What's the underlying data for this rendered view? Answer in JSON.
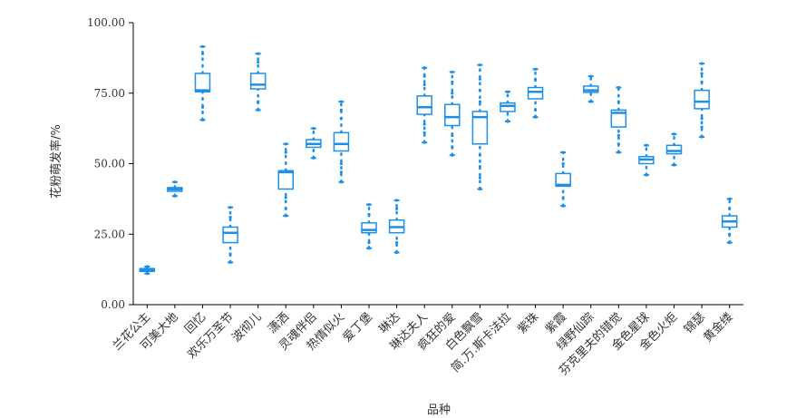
{
  "chart_data": {
    "type": "box",
    "xlabel": "品种",
    "ylabel": "花粉萌发率/%",
    "ylim": [
      0,
      100
    ],
    "yticks": [
      "0.00",
      "25.00",
      "50.00",
      "75.00",
      "100.00"
    ],
    "grid": false,
    "color": "#1e8fe6",
    "categories": [
      "兰花公主",
      "可美大地",
      "回忆",
      "欢乐万圣节",
      "波彻儿",
      "潇洒",
      "灵魂伴侣",
      "热情似火",
      "爱丁堡",
      "琳达",
      "琳达夫人",
      "疯狂的爱",
      "白色飘雪",
      "简.万.斯卡法拉",
      "紫珠",
      "紫霞",
      "绿野仙踪",
      "芬克里夫的错觉",
      "金色星球",
      "金色火炬",
      "锦瑟",
      "黄金缕"
    ],
    "boxes": [
      {
        "min": 11.0,
        "q1": 11.8,
        "median": 12.3,
        "q3": 12.8,
        "max": 13.5,
        "points": [
          11.0,
          13.5
        ]
      },
      {
        "min": 38.5,
        "q1": 40.2,
        "median": 40.9,
        "q3": 41.5,
        "max": 43.5,
        "points": [
          38.5,
          43.5
        ]
      },
      {
        "min": 65.5,
        "q1": 75.5,
        "median": 76.0,
        "q3": 82.0,
        "max": 91.5,
        "points": [
          65.5,
          70.0,
          89.0,
          91.5
        ]
      },
      {
        "min": 15.0,
        "q1": 22.0,
        "median": 25.5,
        "q3": 27.5,
        "max": 34.5,
        "points": [
          15.0,
          18.0,
          31.0,
          34.5
        ]
      },
      {
        "min": 69.0,
        "q1": 76.5,
        "median": 78.0,
        "q3": 82.0,
        "max": 89.0,
        "points": [
          69.0,
          72.0,
          86.0,
          89.0
        ]
      },
      {
        "min": 31.5,
        "q1": 41.0,
        "median": 47.0,
        "q3": 47.5,
        "max": 57.0,
        "points": [
          31.5,
          34.0,
          38.0,
          54.0,
          57.0
        ]
      },
      {
        "min": 52.0,
        "q1": 55.8,
        "median": 57.0,
        "q3": 58.5,
        "max": 62.5,
        "points": [
          52.0,
          62.5
        ]
      },
      {
        "min": 43.5,
        "q1": 54.5,
        "median": 57.0,
        "q3": 61.0,
        "max": 72.0,
        "points": [
          43.5,
          47.0,
          50.0,
          66.0,
          69.0,
          72.0
        ]
      },
      {
        "min": 20.0,
        "q1": 25.5,
        "median": 26.5,
        "q3": 29.0,
        "max": 35.5,
        "points": [
          20.0,
          22.0,
          32.0,
          35.5
        ]
      },
      {
        "min": 18.5,
        "q1": 25.5,
        "median": 27.5,
        "q3": 30.0,
        "max": 37.0,
        "points": [
          18.5,
          22.0,
          34.0,
          37.0
        ]
      },
      {
        "min": 57.5,
        "q1": 67.5,
        "median": 70.0,
        "q3": 74.0,
        "max": 84.0,
        "points": [
          57.5,
          61.0,
          64.0,
          78.0,
          81.0,
          84.0
        ]
      },
      {
        "min": 53.0,
        "q1": 63.5,
        "median": 66.5,
        "q3": 71.0,
        "max": 82.5,
        "points": [
          53.0,
          56.0,
          60.0,
          75.0,
          79.0,
          82.5
        ]
      },
      {
        "min": 41.0,
        "q1": 57.0,
        "median": 66.5,
        "q3": 68.5,
        "max": 85.0,
        "points": [
          41.0,
          45.0,
          49.0,
          53.0,
          72.0,
          76.0,
          80.0,
          85.0
        ]
      },
      {
        "min": 65.0,
        "q1": 68.5,
        "median": 70.5,
        "q3": 71.5,
        "max": 75.5,
        "points": [
          65.0,
          75.5
        ]
      },
      {
        "min": 66.5,
        "q1": 73.0,
        "median": 75.5,
        "q3": 77.0,
        "max": 83.5,
        "points": [
          66.5,
          69.0,
          80.0,
          83.5
        ]
      },
      {
        "min": 35.0,
        "q1": 42.0,
        "median": 42.5,
        "q3": 46.5,
        "max": 54.0,
        "points": [
          35.0,
          38.0,
          50.0,
          54.0
        ]
      },
      {
        "min": 72.0,
        "q1": 75.3,
        "median": 76.0,
        "q3": 77.5,
        "max": 81.0,
        "points": [
          72.0,
          81.0
        ]
      },
      {
        "min": 54.0,
        "q1": 63.0,
        "median": 68.0,
        "q3": 69.0,
        "max": 77.0,
        "points": [
          54.0,
          57.0,
          60.0,
          72.0,
          77.0
        ]
      },
      {
        "min": 46.0,
        "q1": 50.0,
        "median": 51.5,
        "q3": 52.5,
        "max": 56.5,
        "points": [
          46.0,
          56.5
        ]
      },
      {
        "min": 49.5,
        "q1": 53.5,
        "median": 54.5,
        "q3": 56.5,
        "max": 60.5,
        "points": [
          49.5,
          60.5
        ]
      },
      {
        "min": 59.5,
        "q1": 69.5,
        "median": 72.0,
        "q3": 76.0,
        "max": 85.5,
        "points": [
          59.5,
          63.0,
          66.0,
          79.0,
          82.0,
          85.5
        ]
      },
      {
        "min": 22.0,
        "q1": 27.5,
        "median": 29.5,
        "q3": 31.5,
        "max": 37.5,
        "points": [
          22.0,
          25.0,
          34.0,
          37.5
        ]
      }
    ]
  }
}
